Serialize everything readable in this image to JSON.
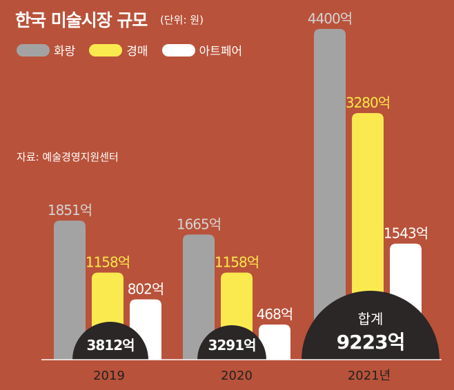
{
  "header": {
    "title": "한국 미술시장 규모",
    "unit": "(단위: 원)",
    "source": "자료: 예술경영지원센터"
  },
  "chart_data": {
    "type": "bar",
    "title": "한국 미술시장 규모",
    "unit": "(단위: 원)",
    "categories": [
      "2019",
      "2020",
      "2021년"
    ],
    "series": [
      {
        "name": "화랑",
        "values": [
          1851,
          1665,
          4400
        ],
        "labels": [
          "1851억",
          "1665억",
          "4400억"
        ],
        "color": "#a3a3a3",
        "label_color": "#d4d4d4"
      },
      {
        "name": "경매",
        "values": [
          1158,
          1158,
          3280
        ],
        "labels": [
          "1158억",
          "1158억",
          "3280억"
        ],
        "color": "#fbea4f",
        "label_color": "#fbe94a"
      },
      {
        "name": "아트페어",
        "values": [
          802,
          468,
          1543
        ],
        "labels": [
          "802억",
          "468억",
          "1543억"
        ],
        "color": "#ffffff",
        "label_color": "#ffffff"
      }
    ],
    "totals": [
      {
        "value": 3812,
        "text": "3812억",
        "prefix": ""
      },
      {
        "value": 3291,
        "text": "3291억",
        "prefix": ""
      },
      {
        "value": 9223,
        "text": "9223억",
        "prefix": "합계"
      }
    ],
    "legend_position": "top-left",
    "grid": false
  },
  "colors": {
    "background": "#b9523a",
    "total_circle": "#2a2726",
    "axis_line": "#ffffff"
  }
}
